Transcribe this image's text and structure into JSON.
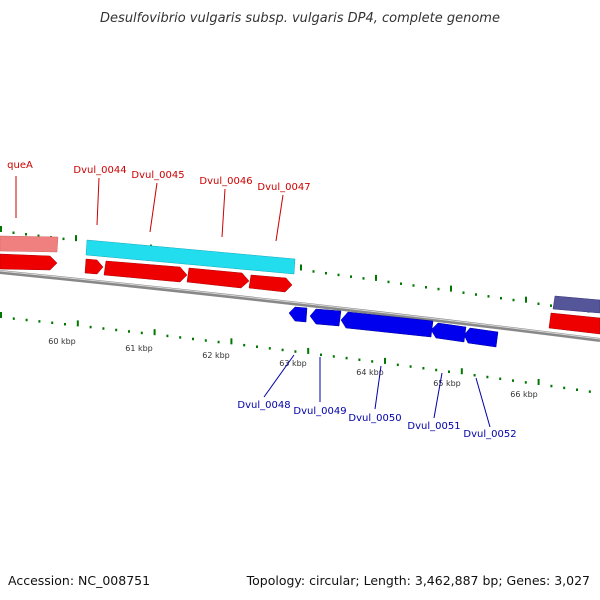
{
  "title": "Desulfovibrio vulgaris subsp. vulgaris DP4, complete genome",
  "footer": {
    "accession": "Accession: NC_008751",
    "stats": "Topology: circular; Length: 3,462,887 bp; Genes: 3,027"
  },
  "colors": {
    "forward_gene": "#ee0000",
    "reverse_gene": "#0000ee",
    "forward_label": "#cc0000",
    "reverse_label": "#0000aa",
    "backbone": "#888888",
    "tick": "#007700",
    "feature_pink": "#f08080",
    "feature_cyan": "#22ddee",
    "feature_purple": "#555599"
  },
  "scale_labels": [
    "60 kbp",
    "61 kbp",
    "62 kbp",
    "63 kbp",
    "64 kbp",
    "65 kbp",
    "66 kbp"
  ],
  "forward_labels": [
    "queA",
    "Dvul_0044",
    "Dvul_0045",
    "Dvul_0046",
    "Dvul_0047"
  ],
  "reverse_labels": [
    "Dvul_0048",
    "Dvul_0049",
    "Dvul_0050",
    "Dvul_0051",
    "Dvul_0052"
  ]
}
